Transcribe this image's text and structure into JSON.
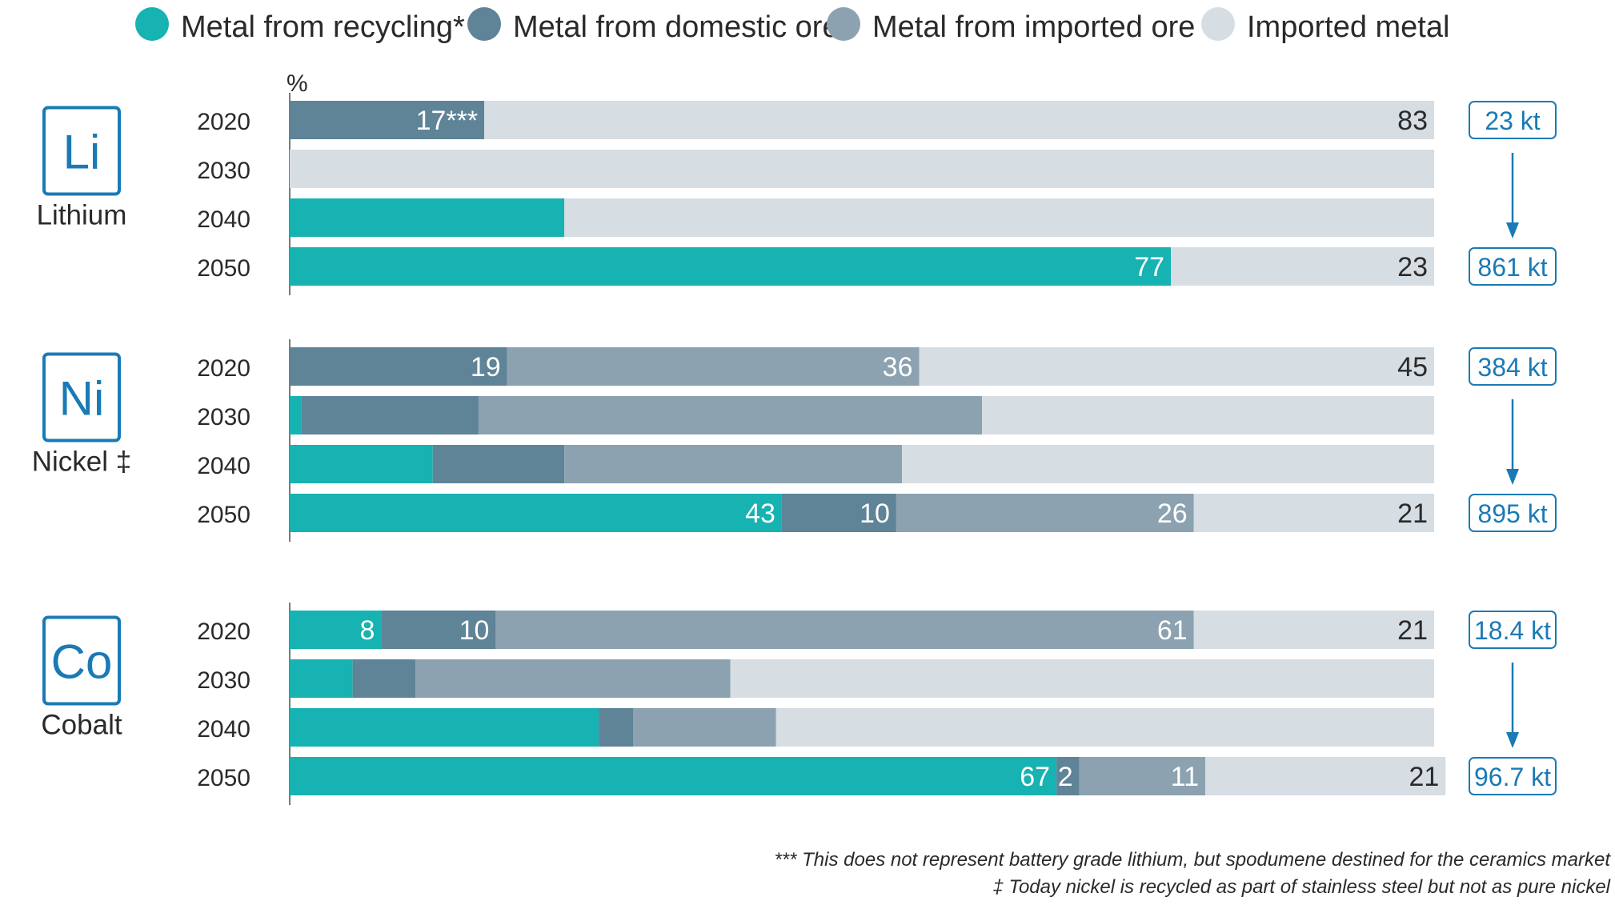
{
  "colors": {
    "recycling": "#17b2b2",
    "domestic_ore": "#5f8397",
    "imported_ore": "#8ca2b0",
    "imported_metal": "#d6dde3",
    "accent": "#1a7ab5",
    "text": "#2a2a2a"
  },
  "chart_data": {
    "type": "bar",
    "orientation": "horizontal",
    "stacked": true,
    "unit_label": "%",
    "xlim": [
      0,
      100
    ],
    "legend_position": "top",
    "legend": [
      {
        "key": "recycling",
        "label": "Metal from recycling*"
      },
      {
        "key": "domestic_ore",
        "label": "Metal from domestic ore"
      },
      {
        "key": "imported_ore",
        "label": "Metal from imported ore"
      },
      {
        "key": "imported_metal",
        "label": "Imported metal"
      }
    ],
    "groups": [
      {
        "symbol": "Li",
        "name": "Lithium",
        "demand_start": "23 kt",
        "demand_end": "861 kt",
        "rows": [
          {
            "year": "2020",
            "recycling": 0,
            "domestic_ore": 17,
            "imported_ore": 0,
            "imported_metal": 83,
            "labels": {
              "domestic_ore": "17***",
              "imported_metal": "83"
            }
          },
          {
            "year": "2030",
            "recycling": 0,
            "domestic_ore": 0,
            "imported_ore": 0,
            "imported_metal": 100,
            "labels": {}
          },
          {
            "year": "2040",
            "recycling": 24,
            "domestic_ore": 0,
            "imported_ore": 0,
            "imported_metal": 76,
            "labels": {}
          },
          {
            "year": "2050",
            "recycling": 77,
            "domestic_ore": 0,
            "imported_ore": 0,
            "imported_metal": 23,
            "labels": {
              "recycling": "77",
              "imported_metal": "23"
            }
          }
        ]
      },
      {
        "symbol": "Ni",
        "name": "Nickel ‡",
        "demand_start": "384 kt",
        "demand_end": "895 kt",
        "rows": [
          {
            "year": "2020",
            "recycling": 0,
            "domestic_ore": 19,
            "imported_ore": 36,
            "imported_metal": 45,
            "labels": {
              "domestic_ore": "19",
              "imported_ore": "36",
              "imported_metal": "45"
            }
          },
          {
            "year": "2030",
            "recycling": 1,
            "domestic_ore": 15.5,
            "imported_ore": 44,
            "imported_metal": 39.5,
            "labels": {}
          },
          {
            "year": "2040",
            "recycling": 12.5,
            "domestic_ore": 11.5,
            "imported_ore": 29.5,
            "imported_metal": 46.5,
            "labels": {}
          },
          {
            "year": "2050",
            "recycling": 43,
            "domestic_ore": 10,
            "imported_ore": 26,
            "imported_metal": 21,
            "labels": {
              "recycling": "43",
              "domestic_ore": "10",
              "imported_ore": "26",
              "imported_metal": "21"
            }
          }
        ]
      },
      {
        "symbol": "Co",
        "name": "Cobalt",
        "demand_start": "18.4 kt",
        "demand_end": "96.7 kt",
        "rows": [
          {
            "year": "2020",
            "recycling": 8,
            "domestic_ore": 10,
            "imported_ore": 61,
            "imported_metal": 21,
            "labels": {
              "recycling": "8",
              "domestic_ore": "10",
              "imported_ore": "61",
              "imported_metal": "21"
            }
          },
          {
            "year": "2030",
            "recycling": 5.5,
            "domestic_ore": 5.5,
            "imported_ore": 27.5,
            "imported_metal": 61.5,
            "labels": {}
          },
          {
            "year": "2040",
            "recycling": 27,
            "domestic_ore": 3,
            "imported_ore": 12.5,
            "imported_metal": 57.5,
            "labels": {}
          },
          {
            "year": "2050",
            "recycling": 67,
            "domestic_ore": 2,
            "imported_ore": 11,
            "imported_metal": 21,
            "labels": {
              "recycling": "67",
              "domestic_ore": "2",
              "imported_ore": "11",
              "imported_metal": "21"
            }
          }
        ]
      }
    ],
    "footnotes": [
      "*** This does not represent battery grade lithium, but spodumene destined for the ceramics market",
      "‡ Today nickel is recycled as part of stainless steel but not as pure nickel"
    ]
  }
}
